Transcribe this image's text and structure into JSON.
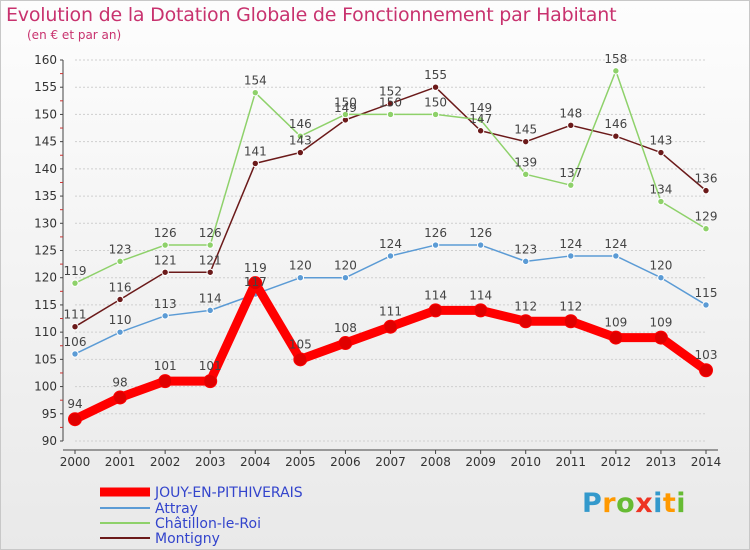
{
  "title": "Evolution de la Dotation Globale de Fonctionnement par Habitant",
  "subtitle": "(en € et par an)",
  "logo": "Proxiti",
  "chart_data": {
    "type": "line",
    "title": "Evolution de la Dotation Globale de Fonctionnement par Habitant",
    "subtitle": "(en € et par an)",
    "xlabel": "",
    "ylabel": "",
    "x": [
      "2000",
      "2001",
      "2002",
      "2003",
      "2004",
      "2005",
      "2006",
      "2007",
      "2008",
      "2009",
      "2010",
      "2011",
      "2012",
      "2013",
      "2014"
    ],
    "ylim": [
      90,
      160
    ],
    "yticks": [
      90,
      95,
      100,
      105,
      110,
      115,
      120,
      125,
      130,
      135,
      140,
      145,
      150,
      155,
      160
    ],
    "grid": "horizontal",
    "legend_position": "bottom-left",
    "series": [
      {
        "name": "JOUY-EN-PITHIVERAIS",
        "color": "#ff0000",
        "values": [
          94,
          98,
          101,
          101,
          119,
          105,
          108,
          111,
          114,
          114,
          112,
          112,
          109,
          109,
          103
        ]
      },
      {
        "name": "Attray",
        "color": "#5b9bd5",
        "values": [
          106,
          110,
          113,
          114,
          117,
          120,
          120,
          124,
          126,
          126,
          123,
          124,
          124,
          120,
          115
        ]
      },
      {
        "name": "Châtillon-le-Roi",
        "color": "#8ed16a",
        "values": [
          119,
          123,
          126,
          126,
          154,
          146,
          150,
          150,
          150,
          149,
          139,
          137,
          158,
          134,
          129
        ]
      },
      {
        "name": "Montigny",
        "color": "#6b1a1a",
        "values": [
          111,
          116,
          121,
          121,
          141,
          143,
          149,
          152,
          155,
          147,
          145,
          148,
          146,
          143,
          136
        ]
      }
    ]
  }
}
